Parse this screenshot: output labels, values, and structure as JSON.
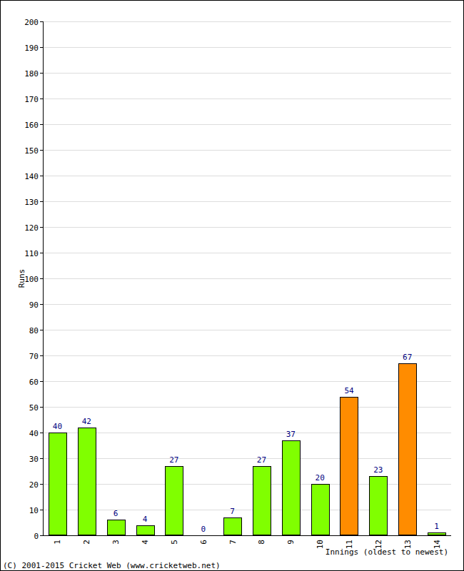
{
  "chart_data": {
    "type": "bar",
    "categories": [
      "1",
      "2",
      "3",
      "4",
      "5",
      "6",
      "7",
      "8",
      "9",
      "10",
      "11",
      "12",
      "13",
      "14"
    ],
    "values": [
      40,
      42,
      6,
      4,
      27,
      0,
      7,
      27,
      37,
      20,
      54,
      23,
      67,
      1
    ],
    "colors": [
      "#80ff00",
      "#80ff00",
      "#80ff00",
      "#80ff00",
      "#80ff00",
      "#80ff00",
      "#80ff00",
      "#80ff00",
      "#80ff00",
      "#80ff00",
      "#ff8c00",
      "#80ff00",
      "#ff8c00",
      "#80ff00"
    ],
    "ylim": [
      0,
      200
    ],
    "yticks": [
      0,
      10,
      20,
      30,
      40,
      50,
      60,
      70,
      80,
      90,
      100,
      110,
      120,
      130,
      140,
      150,
      160,
      170,
      180,
      190,
      200
    ],
    "grid": true,
    "data_labels": true,
    "x_label": "Innings (oldest to newest)",
    "y_label": "Runs",
    "annotations": [
      "(C) 2001-2015 Cricket Web (www.cricketweb.net)"
    ]
  }
}
